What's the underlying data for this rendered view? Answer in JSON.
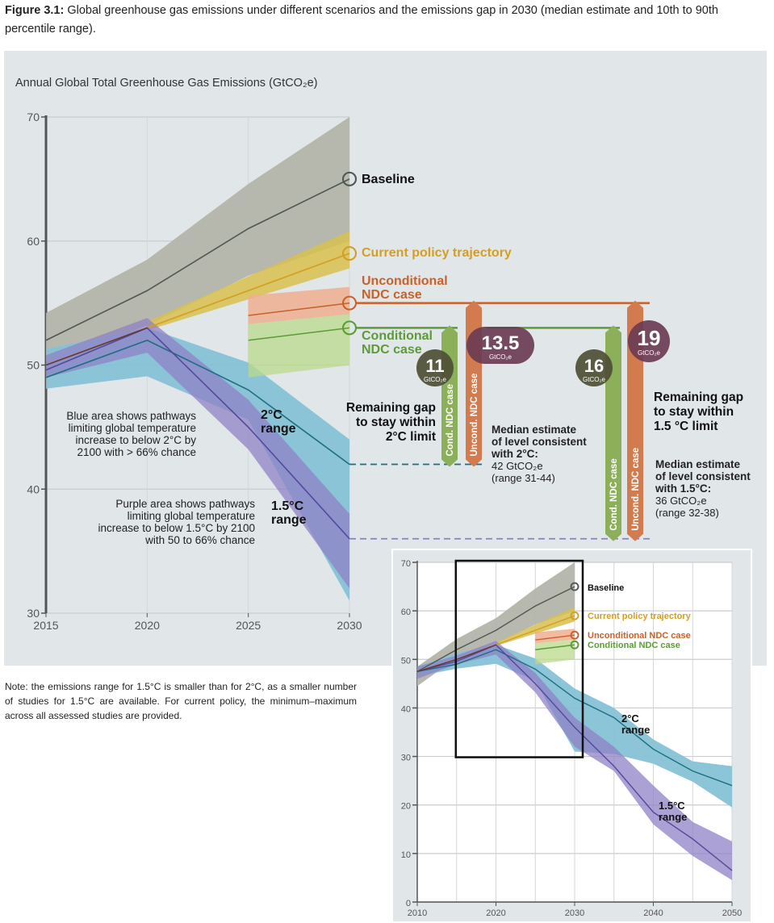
{
  "caption": {
    "figure_label": "Figure 3.1:",
    "text": " Global greenhouse gas emissions under different scenarios and the emissions gap in 2030 (median estimate and 10th to 90th percentile range)."
  },
  "note": "Note: the emissions range for 1.5°C is smaller than for 2°C, as a smaller number of studies for 1.5°C are available. For current policy, the minimum–maximum across all assessed studies are provided.",
  "colors": {
    "baseline": "#4f5853",
    "baseline_band": "#b3b5aa",
    "current_policy": "#d39e22",
    "current_policy_band": "#d8c04e",
    "unconditional_ndc": "#c8612a",
    "unconditional_ndc_band": "#eeae90",
    "conditional_ndc": "#5c9b37",
    "conditional_ndc_band": "#b9d98a",
    "two_degree": "#1b6f80",
    "two_degree_band": "#86c1d6",
    "one_five_degree": "#54489c",
    "one_five_degree_band": "#8f82c6",
    "historical": "#6a3a28",
    "gap_cond_bar": "#8cb05a",
    "gap_uncond_bar": "#d27b4e",
    "bubble_cond": "#4e4f34",
    "bubble_uncond": "#6b3c52"
  },
  "chart_data": [
    {
      "type": "area",
      "title": "Annual Global Total Greenhouse Gas Emissions (GtCO₂e)",
      "xlabel": "",
      "ylabel": "",
      "xlim": [
        2015,
        2030
      ],
      "ylim": [
        30,
        70
      ],
      "x_ticks": [
        "2015",
        "2020",
        "2025",
        "2030"
      ],
      "y_ticks": [
        "30",
        "40",
        "50",
        "60",
        "70"
      ],
      "grid": true,
      "series": [
        {
          "key": "baseline",
          "name": "Baseline",
          "x": [
            2015,
            2020,
            2025,
            2030
          ],
          "median": [
            52,
            56,
            61,
            65
          ],
          "low": [
            50.3,
            53.2,
            57.2,
            60
          ],
          "high": [
            54.2,
            58.5,
            64.6,
            70
          ],
          "marker_end": true
        },
        {
          "key": "current_policy",
          "name": "Current policy trajectory",
          "x": [
            2020,
            2030
          ],
          "median": [
            53,
            59
          ],
          "low": [
            52.8,
            57.8
          ],
          "high": [
            53.5,
            60.8
          ],
          "marker_end": true
        },
        {
          "key": "unconditional_ndc",
          "name": "Unconditional NDC case",
          "x": [
            2025,
            2030
          ],
          "median": [
            54,
            55
          ],
          "low": [
            53.3,
            54.1
          ],
          "high": [
            55.6,
            56.3
          ],
          "marker_end": true
        },
        {
          "key": "conditional_ndc",
          "name": "Conditional NDC case",
          "x": [
            2025,
            2030
          ],
          "median": [
            52,
            53
          ],
          "low": [
            49,
            50
          ],
          "high": [
            53.3,
            54.1
          ],
          "marker_end": true
        },
        {
          "key": "two_degree",
          "name": "2°C range",
          "x": [
            2015,
            2020,
            2025,
            2030
          ],
          "median": [
            49,
            52,
            48,
            42
          ],
          "low": [
            48.1,
            49.1,
            45.6,
            31
          ],
          "high": [
            51.3,
            53,
            50.2,
            44
          ]
        },
        {
          "key": "one_five_degree",
          "name": "1.5°C range",
          "x": [
            2015,
            2020,
            2025,
            2030
          ],
          "median": [
            49.6,
            53,
            45,
            36
          ],
          "low": [
            49,
            51,
            43.2,
            32
          ],
          "high": [
            50.8,
            53.8,
            47.2,
            38
          ]
        },
        {
          "key": "historical",
          "x": [
            2015,
            2020
          ],
          "median": [
            50,
            53
          ]
        }
      ],
      "labels": {
        "baseline": "Baseline",
        "current_policy": "Current policy trajectory",
        "unconditional_ndc_1": "Unconditional",
        "unconditional_ndc_2": "NDC case",
        "conditional_ndc_1": "Conditional",
        "conditional_ndc_2": "NDC case",
        "two_degree_1": "2°C",
        "two_degree_2": "range",
        "one_five_1": "1.5°C",
        "one_five_2": "range",
        "blue_desc_1": "Blue area shows pathways",
        "blue_desc_2": "limiting global temperature",
        "blue_desc_3": "increase to below 2°C by",
        "blue_desc_4": "2100 with > 66% chance",
        "purple_desc_1": "Purple area shows pathways",
        "purple_desc_2": "limiting global temperature",
        "purple_desc_3": "increase to below 1.5°C by 2100",
        "purple_desc_4": "with 50 to 66% chance"
      },
      "gaps": {
        "two_degree": {
          "title_1": "Remaining gap",
          "title_2": "to stay within",
          "title_3": "2°C limit",
          "level": 42,
          "cond_bar_label": "Cond. NDC case",
          "cond_value": "11",
          "cond_from": 53,
          "uncond_bar_label": "Uncond. NDC case",
          "uncond_value": "13.5",
          "uncond_from": 55,
          "unit": "GtCO₂e",
          "median_1": "Median estimate",
          "median_2": "of level consistent",
          "median_3": "with 2°C:",
          "median_value": "42 GtCO₂e",
          "median_range": "(range 31-44)"
        },
        "one_five_degree": {
          "title_1": "Remaining gap",
          "title_2": "to stay within",
          "title_3": "1.5 °C limit",
          "level": 36,
          "cond_bar_label": "Cond. NDC case",
          "cond_value": "16",
          "cond_from": 53,
          "uncond_bar_label": "Uncond. NDC case",
          "uncond_value": "19",
          "uncond_from": 55,
          "unit": "GtCO₂e",
          "median_1": "Median estimate",
          "median_2": "of level consistent",
          "median_3": "with 1.5°C:",
          "median_value": "36 GtCO₂e",
          "median_range": "(range 32-38)"
        }
      }
    },
    {
      "type": "area",
      "title": "",
      "xlim": [
        2010,
        2050
      ],
      "ylim": [
        0,
        70
      ],
      "x_ticks": [
        "2010",
        "2020",
        "2030",
        "2040",
        "2050"
      ],
      "y_ticks": [
        "0",
        "10",
        "20",
        "30",
        "40",
        "50",
        "60",
        "70"
      ],
      "grid": true,
      "zoom_box": {
        "x": [
          2015,
          2030
        ],
        "y": [
          30,
          70
        ]
      },
      "series": [
        {
          "key": "baseline",
          "name": "Baseline",
          "x": [
            2010,
            2015,
            2020,
            2025,
            2030
          ],
          "median": [
            47.5,
            52,
            56,
            61,
            65
          ],
          "low": [
            44.5,
            50.3,
            53.2,
            57.2,
            60
          ],
          "high": [
            48.5,
            54.2,
            58.5,
            64.6,
            70
          ],
          "marker_end": true
        },
        {
          "key": "current_policy",
          "name": "Current policy trajectory",
          "x": [
            2020,
            2030
          ],
          "median": [
            53,
            59
          ],
          "low": [
            52.8,
            57.8
          ],
          "high": [
            53.5,
            60.8
          ],
          "marker_end": true
        },
        {
          "key": "unconditional_ndc",
          "name": "Unconditional NDC case",
          "x": [
            2025,
            2030
          ],
          "median": [
            54,
            55
          ],
          "low": [
            53.3,
            54.1
          ],
          "high": [
            55.6,
            56.3
          ],
          "marker_end": true
        },
        {
          "key": "conditional_ndc",
          "name": "Conditional NDC case",
          "x": [
            2025,
            2030
          ],
          "median": [
            52,
            53
          ],
          "low": [
            49,
            50
          ],
          "high": [
            53.3,
            54.1
          ],
          "marker_end": true
        },
        {
          "key": "two_degree",
          "name": "2°C range",
          "x": [
            2010,
            2015,
            2020,
            2025,
            2030,
            2035,
            2040,
            2045,
            2050
          ],
          "median": [
            47.5,
            49,
            52,
            48,
            42,
            38,
            31.5,
            27,
            24
          ],
          "low": [
            46.5,
            48.1,
            49.1,
            45.6,
            31,
            30.5,
            28.5,
            24.8,
            19.5
          ],
          "high": [
            48.5,
            51.3,
            53,
            50.2,
            44,
            40,
            33.5,
            29,
            28
          ]
        },
        {
          "key": "one_five_degree",
          "name": "1.5°C range",
          "x": [
            2010,
            2015,
            2020,
            2025,
            2030,
            2035,
            2040,
            2045,
            2050
          ],
          "median": [
            47.5,
            49.6,
            53,
            45,
            36,
            28,
            18.5,
            13,
            6.5
          ],
          "low": [
            46,
            49,
            51,
            43.2,
            32,
            27,
            16,
            9.5,
            4.5
          ],
          "high": [
            48.5,
            50.8,
            53.8,
            47.2,
            38,
            32,
            24,
            16.5,
            12.5
          ]
        },
        {
          "key": "historical",
          "x": [
            2010,
            2015,
            2020
          ],
          "median": [
            47.5,
            50,
            53
          ]
        }
      ],
      "labels": {
        "baseline": "Baseline",
        "current_policy": "Current policy trajectory",
        "unconditional_ndc": "Unconditional NDC case",
        "conditional_ndc": "Conditional NDC case",
        "two_degree_1": "2°C",
        "two_degree_2": "range",
        "one_five_1": "1.5°C",
        "one_five_2": "range"
      }
    }
  ]
}
